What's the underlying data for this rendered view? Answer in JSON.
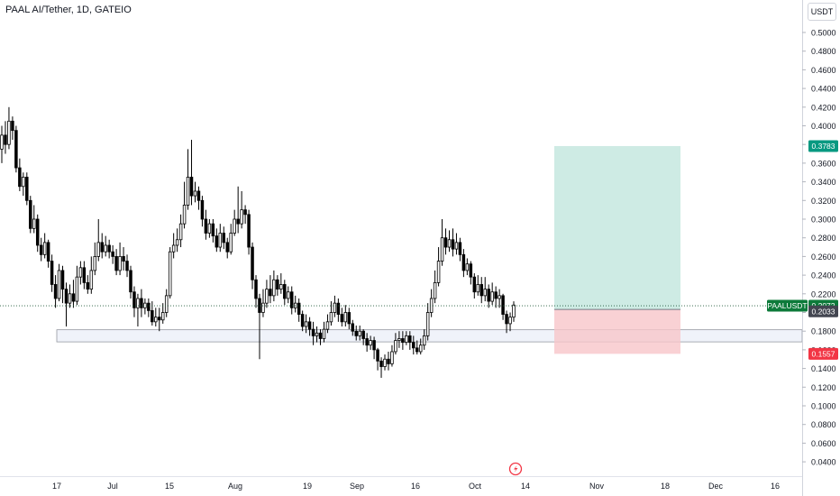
{
  "header": {
    "title": "PAAL AI/Tether, 1D, GATEIO",
    "currency": "USDT"
  },
  "badges": {
    "target": "0.3783",
    "symbol": "PAALUSDT",
    "last": "0.2072",
    "entry": "0.2033",
    "stop": "0.1557"
  },
  "colors": {
    "up": "#ffffff",
    "down": "#000000",
    "profit_zone": "#b9e3d9",
    "loss_zone": "#f7c5c9",
    "target_badge": "#089981",
    "symbol_badge": "#0d7a3a",
    "stop_badge": "#f23645",
    "entry_badge": "#434651"
  },
  "chart_data": {
    "type": "candlestick",
    "title": "PAAL AI/Tether, 1D, GATEIO",
    "xlabel": "",
    "ylabel": "USDT",
    "ylim": [
      0.03,
      0.525
    ],
    "y_ticks": [
      "0.5000",
      "0.4800",
      "0.4600",
      "0.4400",
      "0.4200",
      "0.4000",
      "0.3800",
      "0.3600",
      "0.3400",
      "0.3200",
      "0.3000",
      "0.2800",
      "0.2600",
      "0.2400",
      "0.2200",
      "0.2000",
      "0.1800",
      "0.1600",
      "0.1400",
      "0.1200",
      "0.1000",
      "0.0800",
      "0.0600",
      "0.0400"
    ],
    "x_ticks": [
      "17",
      "Jul",
      "15",
      "Aug",
      "19",
      "Sep",
      "16",
      "Oct",
      "14",
      "Nov",
      "18",
      "Dec",
      "16"
    ],
    "grid": false,
    "support_zone": [
      0.1685,
      0.1815
    ],
    "position": {
      "entry": 0.2033,
      "target": 0.3783,
      "stop": 0.1557,
      "last": 0.2072
    },
    "candles": [
      [
        0.375,
        0.39,
        0.36,
        0.4
      ],
      [
        0.39,
        0.38,
        0.37,
        0.405
      ],
      [
        0.38,
        0.405,
        0.375,
        0.42
      ],
      [
        0.405,
        0.395,
        0.385,
        0.41
      ],
      [
        0.395,
        0.355,
        0.35,
        0.4
      ],
      [
        0.355,
        0.335,
        0.33,
        0.365
      ],
      [
        0.335,
        0.345,
        0.325,
        0.35
      ],
      [
        0.345,
        0.32,
        0.315,
        0.35
      ],
      [
        0.32,
        0.29,
        0.285,
        0.325
      ],
      [
        0.29,
        0.3,
        0.285,
        0.315
      ],
      [
        0.3,
        0.272,
        0.265,
        0.305
      ],
      [
        0.272,
        0.262,
        0.255,
        0.28
      ],
      [
        0.262,
        0.275,
        0.258,
        0.285
      ],
      [
        0.275,
        0.255,
        0.248,
        0.278
      ],
      [
        0.255,
        0.23,
        0.222,
        0.262
      ],
      [
        0.23,
        0.215,
        0.205,
        0.24
      ],
      [
        0.215,
        0.245,
        0.212,
        0.252
      ],
      [
        0.245,
        0.225,
        0.21,
        0.25
      ],
      [
        0.225,
        0.21,
        0.185,
        0.232
      ],
      [
        0.21,
        0.22,
        0.205,
        0.23
      ],
      [
        0.22,
        0.212,
        0.205,
        0.235
      ],
      [
        0.212,
        0.238,
        0.208,
        0.25
      ],
      [
        0.238,
        0.248,
        0.23,
        0.255
      ],
      [
        0.248,
        0.232,
        0.225,
        0.255
      ],
      [
        0.232,
        0.225,
        0.22,
        0.24
      ],
      [
        0.225,
        0.245,
        0.22,
        0.26
      ],
      [
        0.245,
        0.26,
        0.24,
        0.275
      ],
      [
        0.26,
        0.275,
        0.255,
        0.3
      ],
      [
        0.275,
        0.265,
        0.258,
        0.285
      ],
      [
        0.265,
        0.272,
        0.26,
        0.282
      ],
      [
        0.272,
        0.265,
        0.258,
        0.278
      ],
      [
        0.265,
        0.26,
        0.252,
        0.272
      ],
      [
        0.26,
        0.245,
        0.24,
        0.268
      ],
      [
        0.245,
        0.26,
        0.24,
        0.275
      ],
      [
        0.26,
        0.255,
        0.245,
        0.27
      ],
      [
        0.255,
        0.245,
        0.238,
        0.262
      ],
      [
        0.245,
        0.222,
        0.215,
        0.25
      ],
      [
        0.222,
        0.205,
        0.195,
        0.228
      ],
      [
        0.205,
        0.215,
        0.185,
        0.22
      ],
      [
        0.215,
        0.205,
        0.195,
        0.225
      ],
      [
        0.205,
        0.21,
        0.198,
        0.215
      ],
      [
        0.21,
        0.202,
        0.195,
        0.215
      ],
      [
        0.202,
        0.19,
        0.186,
        0.212
      ],
      [
        0.19,
        0.195,
        0.185,
        0.205
      ],
      [
        0.195,
        0.192,
        0.18,
        0.205
      ],
      [
        0.192,
        0.2,
        0.188,
        0.21
      ],
      [
        0.2,
        0.218,
        0.195,
        0.225
      ],
      [
        0.218,
        0.265,
        0.215,
        0.27
      ],
      [
        0.265,
        0.272,
        0.258,
        0.285
      ],
      [
        0.272,
        0.278,
        0.265,
        0.29
      ],
      [
        0.278,
        0.295,
        0.27,
        0.305
      ],
      [
        0.295,
        0.315,
        0.29,
        0.34
      ],
      [
        0.315,
        0.345,
        0.31,
        0.375
      ],
      [
        0.345,
        0.325,
        0.315,
        0.385
      ],
      [
        0.325,
        0.33,
        0.318,
        0.34
      ],
      [
        0.33,
        0.32,
        0.31,
        0.335
      ],
      [
        0.32,
        0.3,
        0.292,
        0.325
      ],
      [
        0.3,
        0.285,
        0.278,
        0.31
      ],
      [
        0.285,
        0.295,
        0.28,
        0.3
      ],
      [
        0.295,
        0.282,
        0.275,
        0.3
      ],
      [
        0.282,
        0.27,
        0.265,
        0.29
      ],
      [
        0.27,
        0.285,
        0.265,
        0.295
      ],
      [
        0.285,
        0.275,
        0.268,
        0.292
      ],
      [
        0.275,
        0.265,
        0.258,
        0.28
      ],
      [
        0.265,
        0.285,
        0.262,
        0.295
      ],
      [
        0.285,
        0.3,
        0.282,
        0.31
      ],
      [
        0.3,
        0.295,
        0.285,
        0.335
      ],
      [
        0.295,
        0.31,
        0.29,
        0.33
      ],
      [
        0.31,
        0.305,
        0.295,
        0.315
      ],
      [
        0.305,
        0.27,
        0.262,
        0.31
      ],
      [
        0.27,
        0.235,
        0.225,
        0.275
      ],
      [
        0.235,
        0.215,
        0.205,
        0.24
      ],
      [
        0.215,
        0.2,
        0.15,
        0.22
      ],
      [
        0.2,
        0.21,
        0.195,
        0.225
      ],
      [
        0.21,
        0.225,
        0.205,
        0.235
      ],
      [
        0.225,
        0.218,
        0.21,
        0.24
      ],
      [
        0.218,
        0.235,
        0.212,
        0.245
      ],
      [
        0.235,
        0.225,
        0.218,
        0.24
      ],
      [
        0.225,
        0.23,
        0.22,
        0.242
      ],
      [
        0.23,
        0.215,
        0.208,
        0.235
      ],
      [
        0.215,
        0.222,
        0.21,
        0.228
      ],
      [
        0.222,
        0.205,
        0.198,
        0.228
      ],
      [
        0.205,
        0.21,
        0.2,
        0.218
      ],
      [
        0.21,
        0.198,
        0.19,
        0.215
      ],
      [
        0.198,
        0.185,
        0.18,
        0.202
      ],
      [
        0.185,
        0.19,
        0.178,
        0.198
      ],
      [
        0.19,
        0.182,
        0.175,
        0.195
      ],
      [
        0.182,
        0.175,
        0.165,
        0.19
      ],
      [
        0.175,
        0.178,
        0.168,
        0.185
      ],
      [
        0.178,
        0.172,
        0.165,
        0.182
      ],
      [
        0.172,
        0.182,
        0.168,
        0.19
      ],
      [
        0.182,
        0.19,
        0.178,
        0.198
      ],
      [
        0.19,
        0.2,
        0.186,
        0.212
      ],
      [
        0.2,
        0.21,
        0.195,
        0.218
      ],
      [
        0.21,
        0.198,
        0.19,
        0.215
      ],
      [
        0.198,
        0.19,
        0.185,
        0.205
      ],
      [
        0.19,
        0.2,
        0.185,
        0.208
      ],
      [
        0.2,
        0.188,
        0.182,
        0.205
      ],
      [
        0.188,
        0.18,
        0.175,
        0.192
      ],
      [
        0.18,
        0.175,
        0.17,
        0.186
      ],
      [
        0.175,
        0.18,
        0.17,
        0.186
      ],
      [
        0.18,
        0.172,
        0.165,
        0.182
      ],
      [
        0.172,
        0.165,
        0.158,
        0.178
      ],
      [
        0.165,
        0.17,
        0.16,
        0.175
      ],
      [
        0.17,
        0.16,
        0.15,
        0.174
      ],
      [
        0.16,
        0.148,
        0.138,
        0.162
      ],
      [
        0.148,
        0.142,
        0.13,
        0.152
      ],
      [
        0.142,
        0.15,
        0.138,
        0.155
      ],
      [
        0.15,
        0.145,
        0.138,
        0.158
      ],
      [
        0.145,
        0.158,
        0.142,
        0.165
      ],
      [
        0.158,
        0.17,
        0.155,
        0.178
      ],
      [
        0.17,
        0.172,
        0.162,
        0.18
      ],
      [
        0.172,
        0.168,
        0.16,
        0.18
      ],
      [
        0.168,
        0.175,
        0.165,
        0.18
      ],
      [
        0.175,
        0.168,
        0.16,
        0.18
      ],
      [
        0.168,
        0.162,
        0.155,
        0.175
      ],
      [
        0.162,
        0.158,
        0.155,
        0.17
      ],
      [
        0.158,
        0.165,
        0.155,
        0.172
      ],
      [
        0.165,
        0.175,
        0.16,
        0.182
      ],
      [
        0.175,
        0.2,
        0.17,
        0.21
      ],
      [
        0.2,
        0.215,
        0.195,
        0.225
      ],
      [
        0.215,
        0.232,
        0.21,
        0.245
      ],
      [
        0.232,
        0.255,
        0.228,
        0.27
      ],
      [
        0.255,
        0.28,
        0.25,
        0.3
      ],
      [
        0.28,
        0.27,
        0.262,
        0.29
      ],
      [
        0.27,
        0.278,
        0.265,
        0.288
      ],
      [
        0.278,
        0.268,
        0.26,
        0.29
      ],
      [
        0.268,
        0.275,
        0.262,
        0.285
      ],
      [
        0.275,
        0.262,
        0.255,
        0.28
      ],
      [
        0.262,
        0.245,
        0.238,
        0.268
      ],
      [
        0.245,
        0.252,
        0.24,
        0.258
      ],
      [
        0.252,
        0.238,
        0.23,
        0.255
      ],
      [
        0.238,
        0.222,
        0.215,
        0.242
      ],
      [
        0.222,
        0.23,
        0.218,
        0.24
      ],
      [
        0.23,
        0.218,
        0.21,
        0.238
      ],
      [
        0.218,
        0.225,
        0.212,
        0.238
      ],
      [
        0.225,
        0.212,
        0.205,
        0.23
      ],
      [
        0.212,
        0.222,
        0.208,
        0.232
      ],
      [
        0.222,
        0.215,
        0.205,
        0.228
      ],
      [
        0.215,
        0.218,
        0.205,
        0.225
      ],
      [
        0.218,
        0.198,
        0.192,
        0.22
      ],
      [
        0.198,
        0.188,
        0.178,
        0.202
      ],
      [
        0.188,
        0.195,
        0.18,
        0.2
      ],
      [
        0.195,
        0.208,
        0.19,
        0.212
      ]
    ]
  }
}
